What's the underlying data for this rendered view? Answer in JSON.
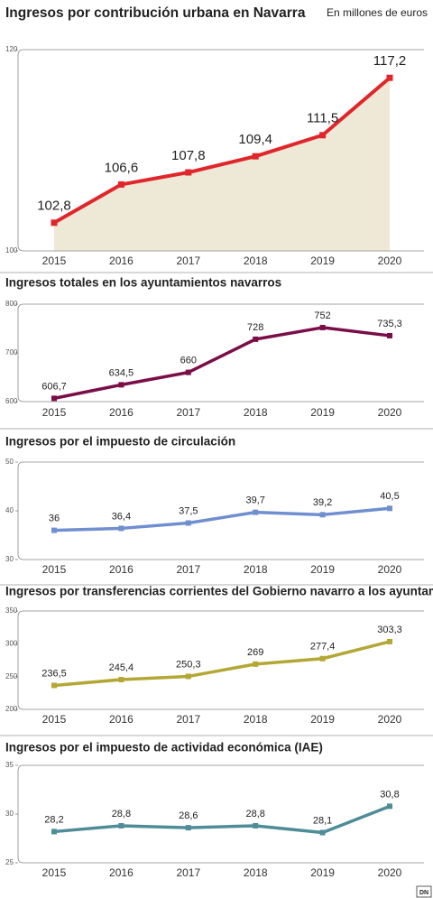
{
  "chart_data": [
    {
      "type": "area",
      "title": "Ingresos por contribución urbana en Navarra",
      "subtitle": "En millones de euros",
      "categories": [
        "2015",
        "2016",
        "2017",
        "2018",
        "2019",
        "2020"
      ],
      "values": [
        102.8,
        106.6,
        107.8,
        109.4,
        111.5,
        117.2
      ],
      "value_labels": [
        "102,8",
        "106,6",
        "107,8",
        "109,4",
        "111,5",
        "117,2"
      ],
      "color": "#e0262b",
      "area_color": "#eee8d6",
      "ylim": [
        100,
        120
      ],
      "yticks": [
        100,
        120
      ]
    },
    {
      "type": "line",
      "title": "Ingresos totales en los ayuntamientos navarros",
      "categories": [
        "2015",
        "2016",
        "2017",
        "2018",
        "2019",
        "2020"
      ],
      "values": [
        606.7,
        634.5,
        660,
        728,
        752,
        735.3
      ],
      "value_labels": [
        "606,7",
        "634,5",
        "660",
        "728",
        "752",
        "735,3"
      ],
      "color": "#7a0f48",
      "ylim": [
        600,
        800
      ],
      "yticks": [
        600,
        700,
        800
      ]
    },
    {
      "type": "line",
      "title": "Ingresos por el impuesto de circulación",
      "categories": [
        "2015",
        "2016",
        "2017",
        "2018",
        "2019",
        "2020"
      ],
      "values": [
        36,
        36.4,
        37.5,
        39.7,
        39.2,
        40.5
      ],
      "value_labels": [
        "36",
        "36,4",
        "37,5",
        "39,7",
        "39,2",
        "40,5"
      ],
      "color": "#6f8fcf",
      "ylim": [
        30,
        50
      ],
      "yticks": [
        30,
        40,
        50
      ]
    },
    {
      "type": "line",
      "title": "Ingresos por transferencias corrientes del Gobierno navarro a los ayuntamientos",
      "categories": [
        "2015",
        "2016",
        "2017",
        "2018",
        "2019",
        "2020"
      ],
      "values": [
        236.5,
        245.4,
        250.3,
        269,
        277.4,
        303.3
      ],
      "value_labels": [
        "236,5",
        "245,4",
        "250,3",
        "269",
        "277,4",
        "303,3"
      ],
      "color": "#b3a735",
      "ylim": [
        200,
        350
      ],
      "yticks": [
        200,
        250,
        300,
        350
      ]
    },
    {
      "type": "line",
      "title": "Ingresos por el impuesto de actividad económica (IAE)",
      "categories": [
        "2015",
        "2016",
        "2017",
        "2018",
        "2019",
        "2020"
      ],
      "values": [
        28.2,
        28.8,
        28.6,
        28.8,
        28.1,
        30.8
      ],
      "value_labels": [
        "28,2",
        "28,8",
        "28,6",
        "28,8",
        "28,1",
        "30,8"
      ],
      "color": "#4f8c98",
      "ylim": [
        25,
        35
      ],
      "yticks": [
        25,
        30,
        35
      ]
    }
  ],
  "logo": "DN"
}
